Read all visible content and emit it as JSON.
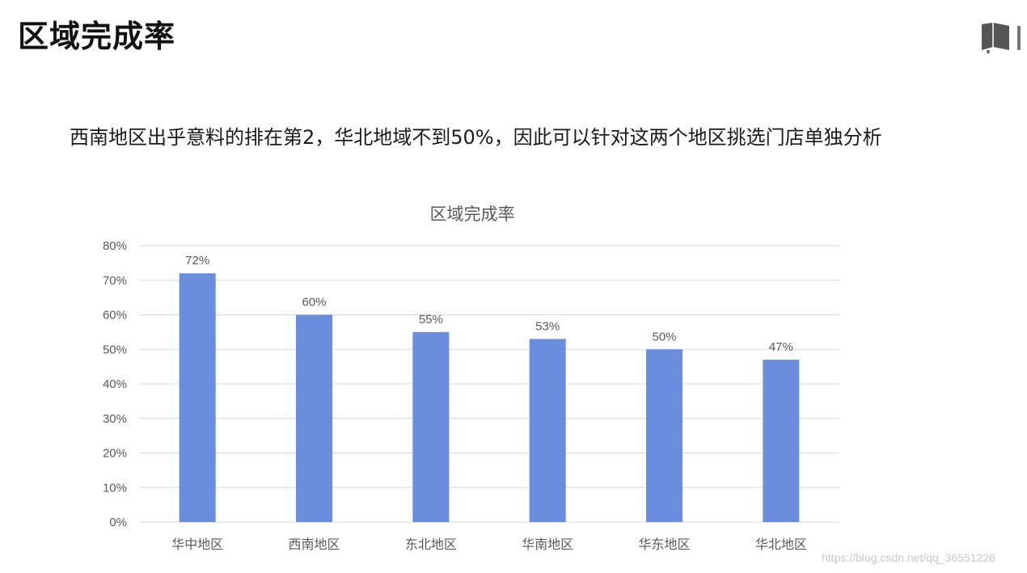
{
  "slide": {
    "title": "区域完成率",
    "subtitle": "西南地区出乎意料的排在第2，华北地域不到50%，因此可以针对这两个地区挑选门店单独分析",
    "watermark": "https://blog.csdn.net/qq_36551226"
  },
  "icons": {
    "corner": "book-icon"
  },
  "colors": {
    "bar": "#6a8ddd",
    "grid": "#d9d9d9",
    "tick_text": "#595959",
    "title_text": "#595959"
  },
  "chart_data": {
    "type": "bar",
    "title": "区域完成率",
    "categories": [
      "华中地区",
      "西南地区",
      "东北地区",
      "华南地区",
      "华东地区",
      "华北地区"
    ],
    "values": [
      72,
      60,
      55,
      53,
      50,
      47
    ],
    "data_labels": [
      "72%",
      "60%",
      "55%",
      "53%",
      "50%",
      "47%"
    ],
    "ylim": [
      0,
      80
    ],
    "yticks": [
      "0%",
      "10%",
      "20%",
      "30%",
      "40%",
      "50%",
      "60%",
      "70%",
      "80%"
    ],
    "grid": true,
    "legend": "none"
  }
}
